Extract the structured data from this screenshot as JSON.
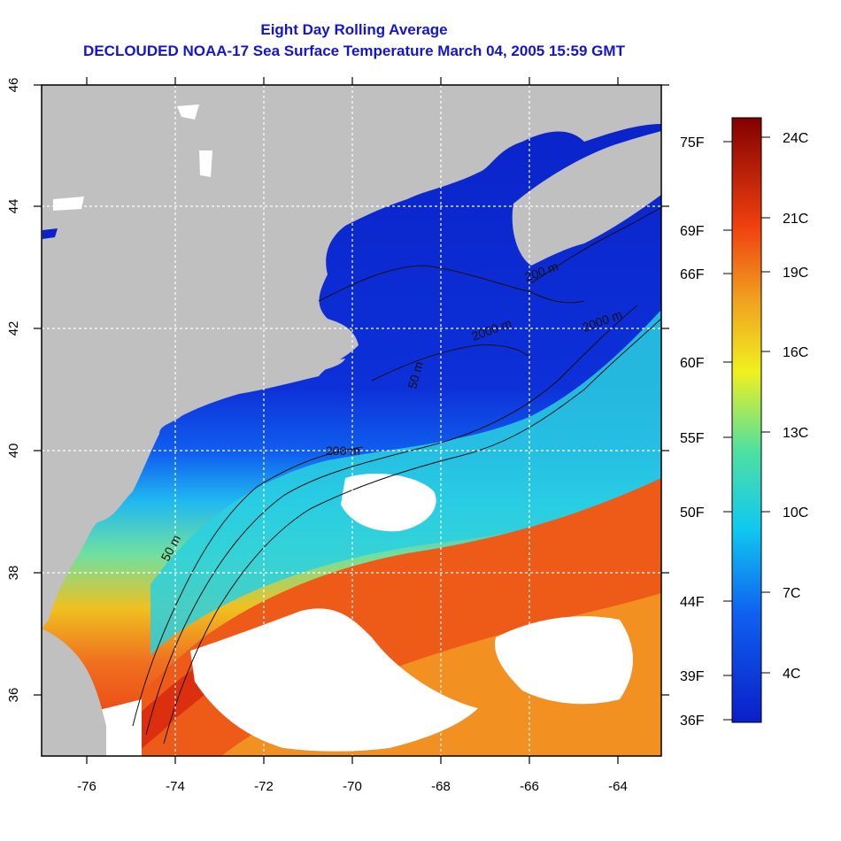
{
  "title": {
    "line1": "Eight Day Rolling Average",
    "line2": "DECLOUDED NOAA-17 Sea Surface Temperature March 04, 2005 15:59 GMT"
  },
  "axes": {
    "x_ticks": [
      "-76",
      "-74",
      "-72",
      "-70",
      "-68",
      "-66",
      "-64"
    ],
    "y_ticks": [
      "36",
      "38",
      "40",
      "42",
      "44",
      "46"
    ]
  },
  "contours": {
    "labels": [
      "50 m",
      "200 m",
      "200 m",
      "50 m",
      "2000 m",
      "2000 m"
    ]
  },
  "colorbar": {
    "fahrenheit": [
      "75F",
      "69F",
      "66F",
      "60F",
      "55F",
      "50F",
      "44F",
      "39F",
      "36F"
    ],
    "celsius": [
      "24C",
      "21C",
      "19C",
      "16C",
      "13C",
      "10C",
      "7C",
      "4C"
    ]
  },
  "colors": {
    "land": "#c0c0c0",
    "cloud_gap": "#ffffff",
    "title": "#1414d2",
    "cold": "#0a1fc8",
    "warm": "#e02a10"
  }
}
